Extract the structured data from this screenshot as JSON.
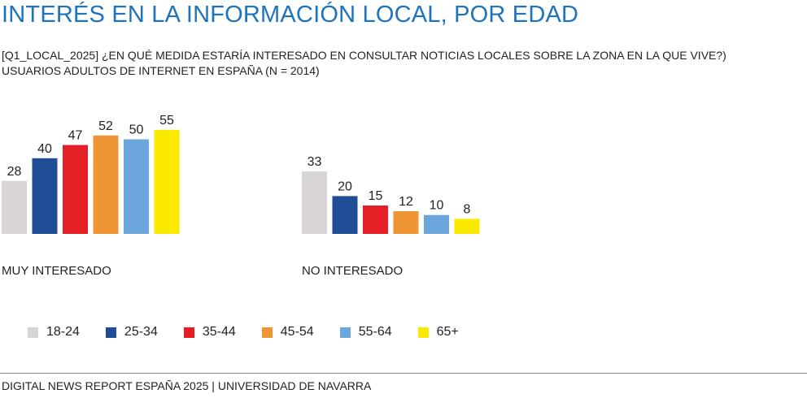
{
  "title": "INTERÉS EN LA INFORMACIÓN LOCAL, POR EDAD",
  "subtitle": {
    "line1": "[Q1_LOCAL_2025] ¿EN QUÉ MEDIDA ESTARÍA INTERESADO EN CONSULTAR NOTICIAS LOCALES SOBRE LA ZONA EN LA QUE VIVE?)",
    "line2": "USUARIOS ADULTOS DE INTERNET EN ESPAÑA (N = 2014)"
  },
  "chart_data": {
    "type": "bar",
    "categories": [
      "MUY INTERESADO",
      "NO INTERESADO"
    ],
    "series": [
      {
        "name": "18-24",
        "color": "#d9d5d6",
        "values": [
          28,
          33
        ]
      },
      {
        "name": "25-34",
        "color": "#1f4e96",
        "values": [
          40,
          20
        ]
      },
      {
        "name": "35-44",
        "color": "#e41f26",
        "values": [
          47,
          15
        ]
      },
      {
        "name": "45-54",
        "color": "#f09535",
        "values": [
          52,
          12
        ]
      },
      {
        "name": "55-64",
        "color": "#6aa5dc",
        "values": [
          50,
          10
        ]
      },
      {
        "name": "65+",
        "color": "#fbe900",
        "values": [
          55,
          8
        ]
      }
    ],
    "ylim": [
      0,
      55
    ],
    "grid": false,
    "legend_position": "bottom",
    "data_labels": true
  },
  "footer": "DIGITAL NEWS REPORT ESPAÑA 2025 | UNIVERSIDAD DE NAVARRA"
}
